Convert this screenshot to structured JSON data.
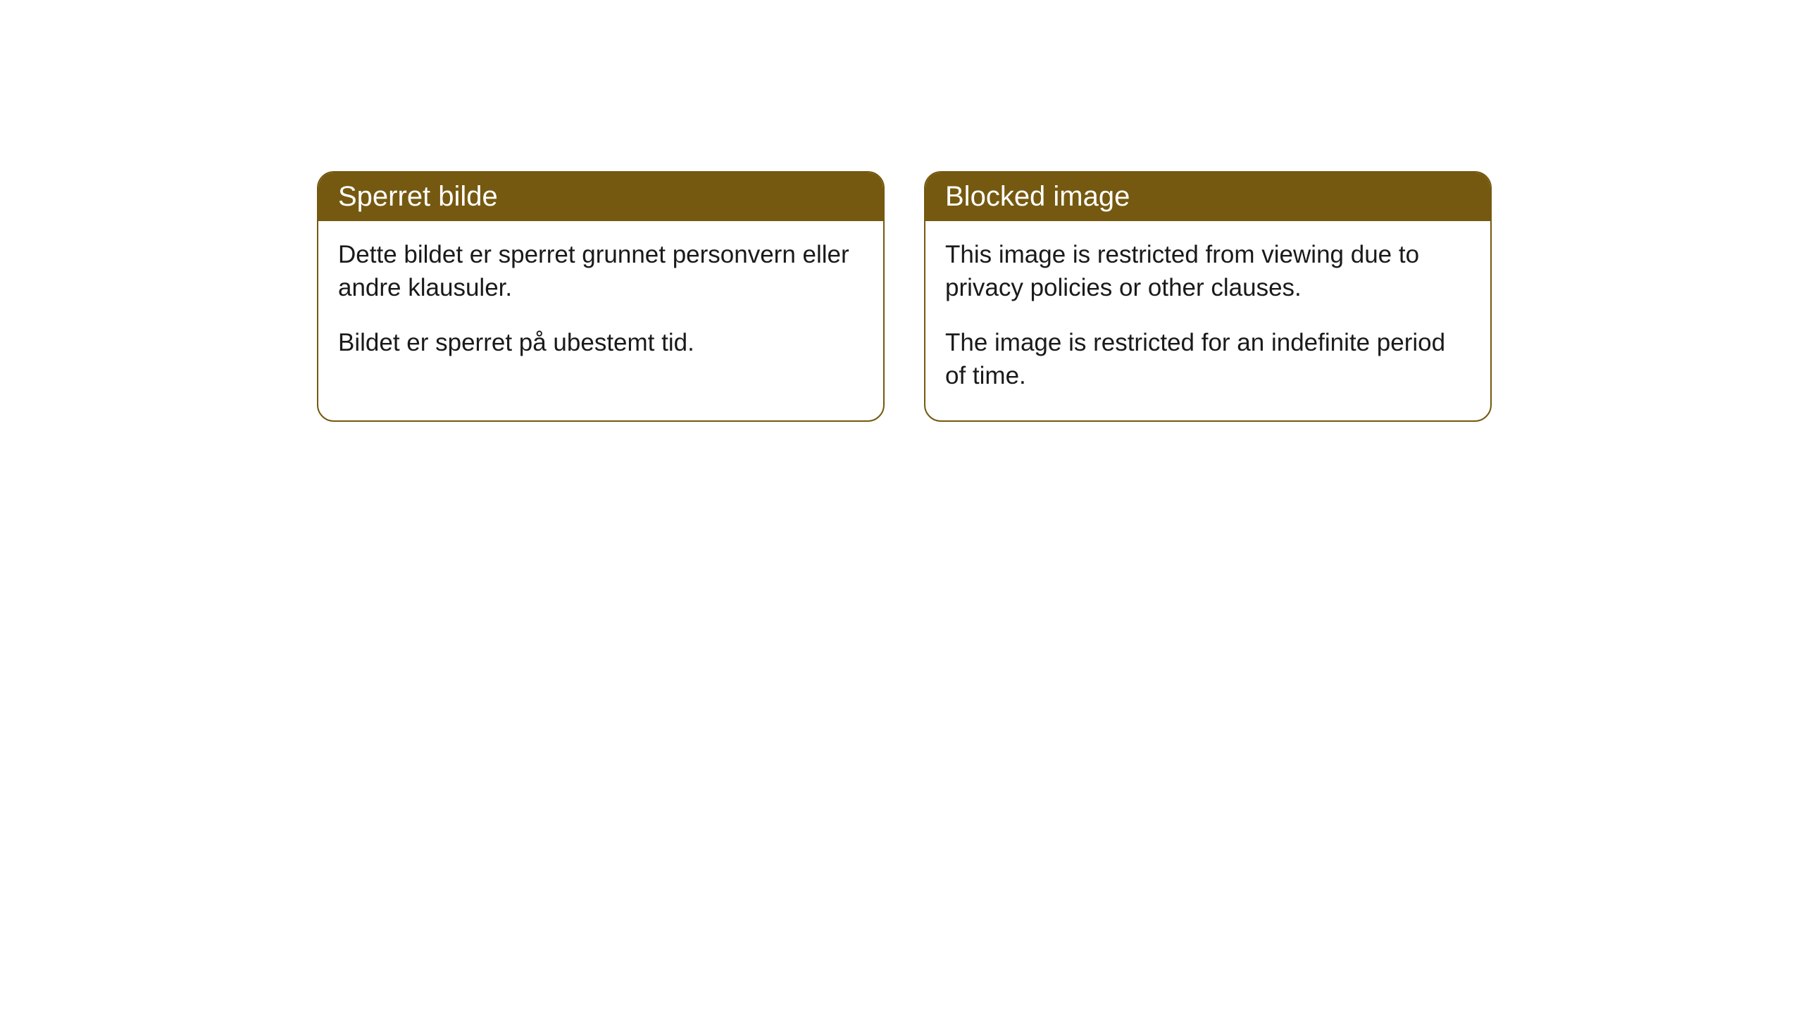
{
  "cards": [
    {
      "header": "Sperret bilde",
      "paragraph1": "Dette bildet er sperret grunnet personvern eller andre klausuler.",
      "paragraph2": "Bildet er sperret på ubestemt tid."
    },
    {
      "header": "Blocked image",
      "paragraph1": "This image is restricted from viewing due to privacy policies or other clauses.",
      "paragraph2": "The image is restricted for an indefinite period of time."
    }
  ],
  "styling": {
    "background_color": "#ffffff",
    "card_border_color": "#755910",
    "card_header_bg": "#755910",
    "card_header_text_color": "#ffffff",
    "card_body_text_color": "#1a1a1a",
    "card_border_radius": 24,
    "header_fontsize": 40,
    "body_fontsize": 35
  }
}
